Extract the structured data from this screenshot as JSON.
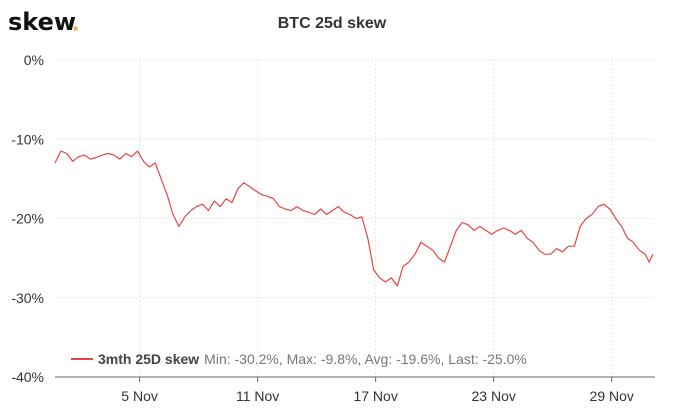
{
  "brand": {
    "name": "skew"
  },
  "chart_data": {
    "type": "line",
    "title": "BTC 25d skew",
    "xlabel": "",
    "ylabel": "",
    "y_unit": "%",
    "ylim": [
      -40,
      0
    ],
    "y_ticks": [
      0,
      -10,
      -20,
      -30,
      -40
    ],
    "y_tick_labels": [
      "0%",
      "-10%",
      "-20%",
      "-30%",
      "-40%"
    ],
    "x_range_days": [
      0,
      30.5
    ],
    "x_ticks": [
      {
        "day": 4.3,
        "label": "5 Nov"
      },
      {
        "day": 10.3,
        "label": "11 Nov"
      },
      {
        "day": 16.3,
        "label": "17 Nov"
      },
      {
        "day": 22.3,
        "label": "23 Nov"
      },
      {
        "day": 28.3,
        "label": "29 Nov"
      }
    ],
    "grid": true,
    "legend_position": "bottom-left",
    "series": [
      {
        "name": "3mth 25D skew",
        "color": "#e84545",
        "x": [
          0.0,
          0.3,
          0.6,
          0.9,
          1.2,
          1.5,
          1.8,
          2.1,
          2.4,
          2.7,
          3.0,
          3.3,
          3.6,
          3.9,
          4.2,
          4.5,
          4.8,
          5.1,
          5.4,
          5.7,
          6.0,
          6.3,
          6.6,
          6.9,
          7.2,
          7.5,
          7.8,
          8.1,
          8.4,
          8.7,
          9.0,
          9.3,
          9.6,
          9.9,
          10.2,
          10.5,
          10.8,
          11.1,
          11.4,
          11.7,
          12.0,
          12.3,
          12.6,
          12.9,
          13.2,
          13.5,
          13.8,
          14.1,
          14.4,
          14.7,
          15.0,
          15.3,
          15.6,
          15.9,
          16.2,
          16.5,
          16.8,
          17.1,
          17.4,
          17.7,
          18.0,
          18.3,
          18.6,
          18.9,
          19.2,
          19.5,
          19.8,
          20.1,
          20.4,
          20.7,
          21.0,
          21.3,
          21.6,
          21.9,
          22.2,
          22.5,
          22.8,
          23.1,
          23.4,
          23.7,
          24.0,
          24.3,
          24.6,
          24.9,
          25.2,
          25.5,
          25.8,
          26.1,
          26.4,
          26.7,
          27.0,
          27.3,
          27.6,
          27.9,
          28.2,
          28.5,
          28.8,
          29.1,
          29.4,
          29.7,
          30.0,
          30.2,
          30.4
        ],
        "y": [
          -13,
          -11.5,
          -11.8,
          -12.8,
          -12.2,
          -12,
          -12.5,
          -12.3,
          -12,
          -11.8,
          -12,
          -12.5,
          -11.8,
          -12.2,
          -11.5,
          -12.8,
          -13.5,
          -13,
          -15,
          -17,
          -19.5,
          -21,
          -19.8,
          -19,
          -18.5,
          -18.2,
          -19,
          -17.8,
          -18.5,
          -17.5,
          -18,
          -16.2,
          -15.5,
          -16,
          -16.5,
          -17,
          -17.2,
          -17.5,
          -18.5,
          -18.8,
          -19,
          -18.5,
          -19,
          -19.2,
          -19.5,
          -18.8,
          -19.5,
          -19,
          -18.5,
          -19.2,
          -19.5,
          -20,
          -19.8,
          -22.5,
          -26.5,
          -27.5,
          -28,
          -27.5,
          -28.5,
          -26,
          -25.5,
          -24.5,
          -23,
          -23.5,
          -24,
          -25,
          -25.5,
          -23.5,
          -21.5,
          -20.5,
          -20.8,
          -21.5,
          -21,
          -21.5,
          -22,
          -21.5,
          -21.2,
          -21.5,
          -22,
          -21.5,
          -22.5,
          -23,
          -24,
          -24.5,
          -24.5,
          -23.8,
          -24.2,
          -23.5,
          -23.5,
          -21,
          -20,
          -19.5,
          -18.5,
          -18.2,
          -18.8,
          -20,
          -21,
          -22.5,
          -23,
          -24,
          -24.5,
          -25.5,
          -24.5
        ]
      }
    ],
    "stats": {
      "min": "-30.2%",
      "max": "-9.8%",
      "avg": "-19.6%",
      "last": "-25.0%"
    },
    "legend_text": {
      "series": "3mth 25D skew",
      "stats": "Min: -30.2%, Max: -9.8%, Avg: -19.6%, Last: -25.0%"
    }
  }
}
